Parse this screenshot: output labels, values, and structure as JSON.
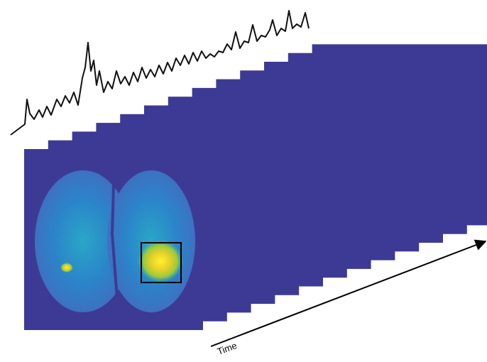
{
  "labels": {
    "time": "Time"
  }
}
